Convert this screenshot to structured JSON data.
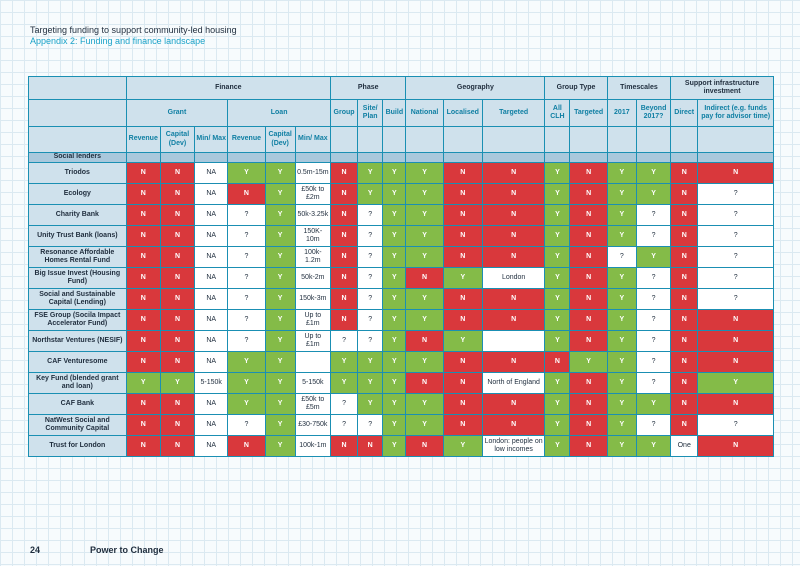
{
  "document": {
    "title": "Targeting funding to support community-led housing",
    "subtitle": "Appendix 2: Funding and finance landscape"
  },
  "footer": {
    "page_number": "24",
    "brand": "Power to Change"
  },
  "groups": [
    {
      "label": "Finance",
      "span": 6
    },
    {
      "label": "Phase",
      "span": 3
    },
    {
      "label": "Geography",
      "span": 3
    },
    {
      "label": "Group Type",
      "span": 2
    },
    {
      "label": "Timescales",
      "span": 2
    },
    {
      "label": "Support infrastructure investment",
      "span": 2
    }
  ],
  "subgroups": [
    {
      "label": "Grant",
      "span": 3
    },
    {
      "label": "Loan",
      "span": 3
    },
    {
      "label": "Group",
      "span": 1
    },
    {
      "label": "Site/ Plan",
      "span": 1
    },
    {
      "label": "Build",
      "span": 1
    },
    {
      "label": "National",
      "span": 1
    },
    {
      "label": "Localised",
      "span": 1
    },
    {
      "label": "Targeted",
      "span": 1
    },
    {
      "label": "All CLH",
      "span": 1
    },
    {
      "label": "Targeted",
      "span": 1
    },
    {
      "label": "2017",
      "span": 1
    },
    {
      "label": "Beyond 2017?",
      "span": 1
    },
    {
      "label": "Direct",
      "span": 1
    },
    {
      "label": "Indirect (e.g. funds pay for advisor time)",
      "span": 1
    }
  ],
  "column_headers": [
    "Revenue",
    "Capital (Dev)",
    "Min/ Max",
    "Revenue",
    "Capital (Dev)",
    "Min/ Max"
  ],
  "section_label": "Social lenders",
  "rows": [
    {
      "name": "Triodos",
      "cells": [
        "N",
        "N",
        "NA",
        "Y",
        "Y",
        "0.5m-15m",
        "N",
        "Y",
        "Y",
        "Y",
        "N",
        "N",
        "Y",
        "N",
        "Y",
        "Y",
        "N",
        "N"
      ],
      "colors": [
        "N",
        "N",
        "W",
        "Y",
        "Y",
        "W",
        "N",
        "Y",
        "Y",
        "Y",
        "N",
        "N",
        "Y",
        "N",
        "Y",
        "Y",
        "N",
        "N"
      ]
    },
    {
      "name": "Ecology",
      "cells": [
        "N",
        "N",
        "NA",
        "N",
        "Y",
        "£50k to £2m",
        "N",
        "Y",
        "Y",
        "Y",
        "N",
        "N",
        "Y",
        "N",
        "Y",
        "Y",
        "N",
        "?"
      ],
      "colors": [
        "N",
        "N",
        "W",
        "N",
        "Y",
        "W",
        "N",
        "Y",
        "Y",
        "Y",
        "N",
        "N",
        "Y",
        "N",
        "Y",
        "Y",
        "N",
        "W"
      ]
    },
    {
      "name": "Charity Bank",
      "cells": [
        "N",
        "N",
        "NA",
        "?",
        "Y",
        "50k-3.25k",
        "N",
        "?",
        "Y",
        "Y",
        "N",
        "N",
        "Y",
        "N",
        "Y",
        "?",
        "N",
        "?"
      ],
      "colors": [
        "N",
        "N",
        "W",
        "W",
        "Y",
        "W",
        "N",
        "W",
        "Y",
        "Y",
        "N",
        "N",
        "Y",
        "N",
        "Y",
        "W",
        "N",
        "W"
      ]
    },
    {
      "name": "Unity Trust Bank (loans)",
      "cells": [
        "N",
        "N",
        "NA",
        "?",
        "Y",
        "150K-10m",
        "N",
        "?",
        "Y",
        "Y",
        "N",
        "N",
        "Y",
        "N",
        "Y",
        "?",
        "N",
        "?"
      ],
      "colors": [
        "N",
        "N",
        "W",
        "W",
        "Y",
        "W",
        "N",
        "W",
        "Y",
        "Y",
        "N",
        "N",
        "Y",
        "N",
        "Y",
        "W",
        "N",
        "W"
      ]
    },
    {
      "name": "Resonance Affordable Homes Rental Fund",
      "cells": [
        "N",
        "N",
        "NA",
        "?",
        "Y",
        "100k-1.2m",
        "N",
        "?",
        "Y",
        "Y",
        "N",
        "N",
        "Y",
        "N",
        "?",
        "Y",
        "N",
        "?"
      ],
      "colors": [
        "N",
        "N",
        "W",
        "W",
        "Y",
        "W",
        "N",
        "W",
        "Y",
        "Y",
        "N",
        "N",
        "Y",
        "N",
        "W",
        "Y",
        "N",
        "W"
      ]
    },
    {
      "name": "Big Issue Invest (Housing Fund)",
      "cells": [
        "N",
        "N",
        "NA",
        "?",
        "Y",
        "50k-2m",
        "N",
        "?",
        "Y",
        "N",
        "Y",
        "London",
        "Y",
        "N",
        "Y",
        "?",
        "N",
        "?"
      ],
      "colors": [
        "N",
        "N",
        "W",
        "W",
        "Y",
        "W",
        "N",
        "W",
        "Y",
        "N",
        "Y",
        "W",
        "Y",
        "N",
        "Y",
        "W",
        "N",
        "W"
      ]
    },
    {
      "name": "Social and Sustainable Capital (Lending)",
      "cells": [
        "N",
        "N",
        "NA",
        "?",
        "Y",
        "150k-3m",
        "N",
        "?",
        "Y",
        "Y",
        "N",
        "N",
        "Y",
        "N",
        "Y",
        "?",
        "N",
        "?"
      ],
      "colors": [
        "N",
        "N",
        "W",
        "W",
        "Y",
        "W",
        "N",
        "W",
        "Y",
        "Y",
        "N",
        "N",
        "Y",
        "N",
        "Y",
        "W",
        "N",
        "W"
      ]
    },
    {
      "name": "FSE Group (Socila Impact Accelerator Fund)",
      "cells": [
        "N",
        "N",
        "NA",
        "?",
        "Y",
        "Up to £1m",
        "N",
        "?",
        "Y",
        "Y",
        "N",
        "N",
        "Y",
        "N",
        "Y",
        "?",
        "N",
        "N"
      ],
      "colors": [
        "N",
        "N",
        "W",
        "W",
        "Y",
        "W",
        "N",
        "W",
        "Y",
        "Y",
        "N",
        "N",
        "Y",
        "N",
        "Y",
        "W",
        "N",
        "N"
      ]
    },
    {
      "name": "Northstar Ventures (NESIF)",
      "cells": [
        "N",
        "N",
        "NA",
        "?",
        "Y",
        "Up to £1m",
        "?",
        "?",
        "Y",
        "N",
        "Y",
        "",
        "Y",
        "N",
        "Y",
        "?",
        "N",
        "N"
      ],
      "colors": [
        "N",
        "N",
        "W",
        "W",
        "Y",
        "W",
        "W",
        "W",
        "Y",
        "N",
        "Y",
        "W",
        "Y",
        "N",
        "Y",
        "W",
        "N",
        "N"
      ]
    },
    {
      "name": "CAF Venturesome",
      "cells": [
        "N",
        "N",
        "NA",
        "Y",
        "Y",
        "",
        "Y",
        "Y",
        "Y",
        "Y",
        "N",
        "N",
        "N",
        "Y",
        "Y",
        "?",
        "N",
        "N"
      ],
      "colors": [
        "N",
        "N",
        "W",
        "Y",
        "Y",
        "W",
        "Y",
        "Y",
        "Y",
        "Y",
        "N",
        "N",
        "N",
        "Y",
        "Y",
        "W",
        "N",
        "N"
      ]
    },
    {
      "name": "Key Fund (blended grant and loan)",
      "cells": [
        "Y",
        "Y",
        "5-150k",
        "Y",
        "Y",
        "5-150k",
        "Y",
        "Y",
        "Y",
        "N",
        "N",
        "North of England",
        "Y",
        "N",
        "Y",
        "?",
        "N",
        "Y"
      ],
      "colors": [
        "Y",
        "Y",
        "W",
        "Y",
        "Y",
        "W",
        "Y",
        "Y",
        "Y",
        "N",
        "N",
        "W",
        "Y",
        "N",
        "Y",
        "W",
        "N",
        "Y"
      ]
    },
    {
      "name": "CAF Bank",
      "cells": [
        "N",
        "N",
        "NA",
        "Y",
        "Y",
        "£50k to £5m",
        "?",
        "Y",
        "Y",
        "Y",
        "N",
        "N",
        "Y",
        "N",
        "Y",
        "Y",
        "N",
        "N"
      ],
      "colors": [
        "N",
        "N",
        "W",
        "Y",
        "Y",
        "W",
        "W",
        "Y",
        "Y",
        "Y",
        "N",
        "N",
        "Y",
        "N",
        "Y",
        "Y",
        "N",
        "N"
      ]
    },
    {
      "name": "NatWest Social and Community Capital",
      "cells": [
        "N",
        "N",
        "NA",
        "?",
        "Y",
        "£30-750k",
        "?",
        "?",
        "Y",
        "Y",
        "N",
        "N",
        "Y",
        "N",
        "Y",
        "?",
        "N",
        "?"
      ],
      "colors": [
        "N",
        "N",
        "W",
        "W",
        "Y",
        "W",
        "W",
        "W",
        "Y",
        "Y",
        "N",
        "N",
        "Y",
        "N",
        "Y",
        "W",
        "N",
        "W"
      ]
    },
    {
      "name": "Trust for London",
      "cells": [
        "N",
        "N",
        "NA",
        "N",
        "Y",
        "100k-1m",
        "N",
        "N",
        "Y",
        "N",
        "Y",
        "London: people on low incomes",
        "Y",
        "N",
        "Y",
        "Y",
        "One",
        "N"
      ],
      "colors": [
        "N",
        "N",
        "W",
        "N",
        "Y",
        "W",
        "N",
        "N",
        "Y",
        "N",
        "Y",
        "W",
        "Y",
        "N",
        "Y",
        "Y",
        "W",
        "N"
      ]
    }
  ]
}
